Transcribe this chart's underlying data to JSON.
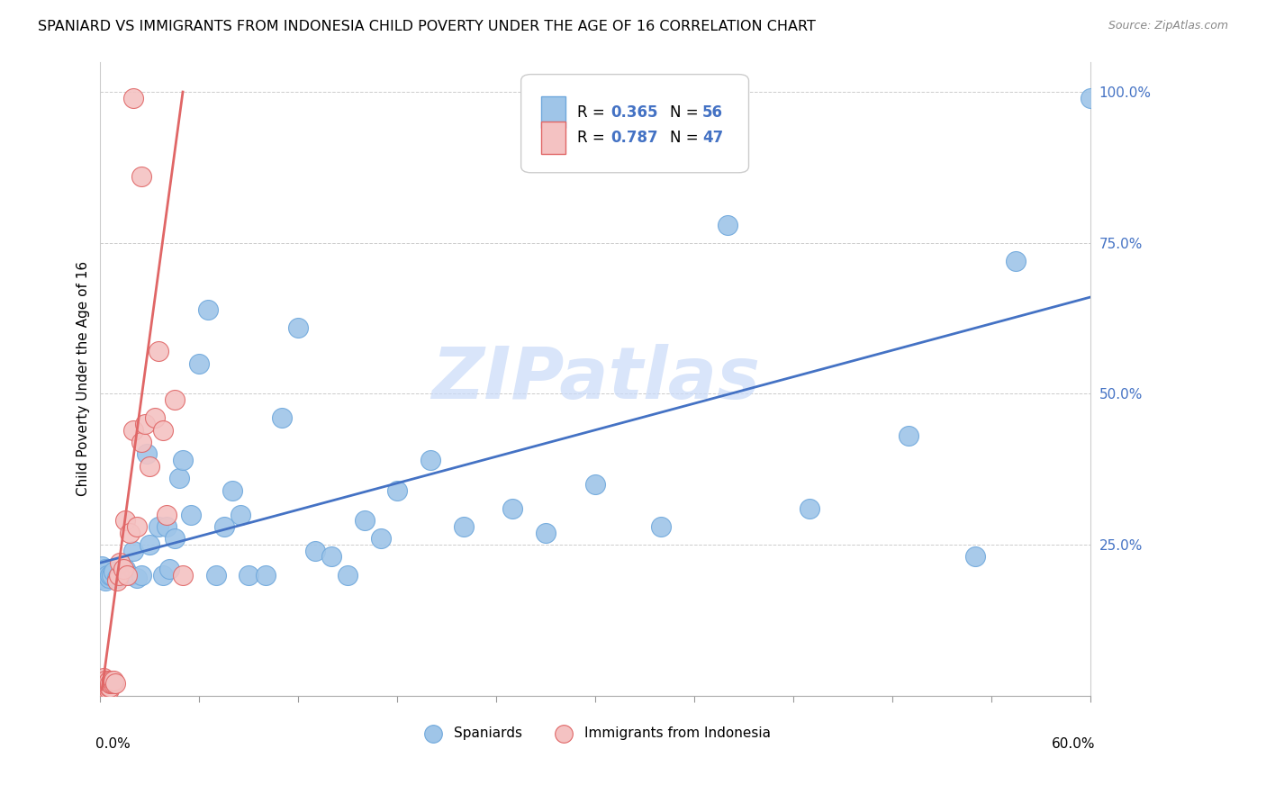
{
  "title": "SPANIARD VS IMMIGRANTS FROM INDONESIA CHILD POVERTY UNDER THE AGE OF 16 CORRELATION CHART",
  "source": "Source: ZipAtlas.com",
  "ylabel": "Child Poverty Under the Age of 16",
  "xlim": [
    0.0,
    0.6
  ],
  "ylim": [
    0.0,
    1.05
  ],
  "yticks": [
    0.25,
    0.5,
    0.75,
    1.0
  ],
  "ytick_labels": [
    "25.0%",
    "50.0%",
    "75.0%",
    "100.0%"
  ],
  "legend_label1": "Spaniards",
  "legend_label2": "Immigrants from Indonesia",
  "blue_color": "#9fc5e8",
  "blue_edge": "#6fa8dc",
  "pink_color": "#f4c2c2",
  "pink_edge": "#e06666",
  "blue_line_color": "#4472c4",
  "pink_line_color": "#e06666",
  "r1_color": "#4472c4",
  "n1_color": "#4472c4",
  "r2_color": "#4472c4",
  "n2_color": "#4472c4",
  "watermark_color": "#c9daf8",
  "blue_x": [
    0.001,
    0.001,
    0.002,
    0.002,
    0.003,
    0.003,
    0.004,
    0.005,
    0.006,
    0.007,
    0.008,
    0.01,
    0.012,
    0.015,
    0.018,
    0.02,
    0.022,
    0.025,
    0.028,
    0.03,
    0.035,
    0.038,
    0.04,
    0.042,
    0.045,
    0.048,
    0.05,
    0.055,
    0.06,
    0.065,
    0.07,
    0.075,
    0.08,
    0.085,
    0.09,
    0.1,
    0.11,
    0.12,
    0.13,
    0.14,
    0.15,
    0.16,
    0.17,
    0.18,
    0.2,
    0.22,
    0.25,
    0.27,
    0.3,
    0.34,
    0.38,
    0.43,
    0.49,
    0.53,
    0.555,
    0.6
  ],
  "blue_y": [
    0.2,
    0.215,
    0.195,
    0.205,
    0.19,
    0.21,
    0.2,
    0.195,
    0.2,
    0.2,
    0.205,
    0.195,
    0.2,
    0.21,
    0.2,
    0.24,
    0.195,
    0.2,
    0.4,
    0.25,
    0.28,
    0.2,
    0.28,
    0.21,
    0.26,
    0.36,
    0.39,
    0.3,
    0.55,
    0.64,
    0.2,
    0.28,
    0.34,
    0.3,
    0.2,
    0.2,
    0.46,
    0.61,
    0.24,
    0.23,
    0.2,
    0.29,
    0.26,
    0.34,
    0.39,
    0.28,
    0.31,
    0.27,
    0.35,
    0.28,
    0.78,
    0.31,
    0.43,
    0.23,
    0.72,
    0.99
  ],
  "pink_x": [
    0.001,
    0.001,
    0.001,
    0.001,
    0.001,
    0.002,
    0.002,
    0.002,
    0.002,
    0.002,
    0.003,
    0.003,
    0.003,
    0.003,
    0.004,
    0.004,
    0.004,
    0.005,
    0.005,
    0.005,
    0.006,
    0.006,
    0.007,
    0.007,
    0.008,
    0.008,
    0.009,
    0.01,
    0.011,
    0.012,
    0.014,
    0.015,
    0.016,
    0.018,
    0.02,
    0.022,
    0.025,
    0.027,
    0.03,
    0.033,
    0.035,
    0.038,
    0.04,
    0.045,
    0.05,
    0.02,
    0.025
  ],
  "pink_y": [
    0.01,
    0.01,
    0.015,
    0.02,
    0.025,
    0.01,
    0.015,
    0.02,
    0.025,
    0.03,
    0.01,
    0.015,
    0.02,
    0.025,
    0.01,
    0.015,
    0.02,
    0.01,
    0.015,
    0.025,
    0.015,
    0.02,
    0.02,
    0.025,
    0.02,
    0.025,
    0.02,
    0.19,
    0.2,
    0.22,
    0.21,
    0.29,
    0.2,
    0.27,
    0.44,
    0.28,
    0.42,
    0.45,
    0.38,
    0.46,
    0.57,
    0.44,
    0.3,
    0.49,
    0.2,
    0.99,
    0.86
  ],
  "blue_line_x0": 0.0,
  "blue_line_y0": 0.22,
  "blue_line_x1": 0.6,
  "blue_line_y1": 0.66,
  "pink_line_x0": 0.001,
  "pink_line_y0": 0.01,
  "pink_line_x1": 0.05,
  "pink_line_y1": 1.0
}
